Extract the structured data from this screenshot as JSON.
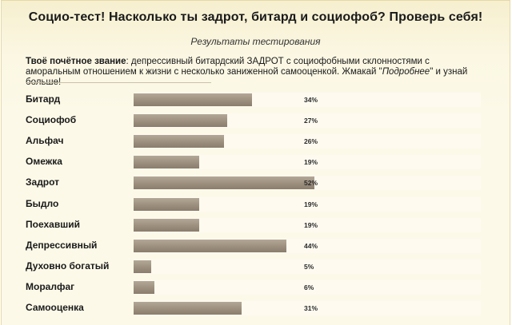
{
  "header": {
    "title": "Социо-тест! Насколько ты задрот, битард и социофоб? Проверь себя!"
  },
  "results": {
    "section_title": "Результаты тестирования",
    "rank_label": "Твоё почётное звание",
    "rank_text_before": ": депрессивный битардский ЗАДРОТ с социофобными склонностями с аморальным отношением к жизни с несколько заниженной самооценкой. Жмакай \"",
    "rank_more_link": "Подробнее",
    "rank_text_after": "\" и узнай больше!",
    "items": [
      {
        "label": "Битард",
        "value": 34,
        "percent": "34%"
      },
      {
        "label": "Социофоб",
        "value": 27,
        "percent": "27%"
      },
      {
        "label": "Альфач",
        "value": 26,
        "percent": "26%"
      },
      {
        "label": "Омежка",
        "value": 19,
        "percent": "19%"
      },
      {
        "label": "Задрот",
        "value": 52,
        "percent": "52%"
      },
      {
        "label": "Быдло",
        "value": 19,
        "percent": "19%"
      },
      {
        "label": "Поехавший",
        "value": 19,
        "percent": "19%"
      },
      {
        "label": "Депрессивный",
        "value": 44,
        "percent": "44%"
      },
      {
        "label": "Духовно богатый",
        "value": 5,
        "percent": "5%"
      },
      {
        "label": "Моралфаг",
        "value": 6,
        "percent": "6%"
      },
      {
        "label": "Самооценка",
        "value": 31,
        "percent": "31%"
      }
    ]
  },
  "colors": {
    "background": "#fcf9e8",
    "bar": "#9c8f7e",
    "track": "#fefaf0"
  }
}
